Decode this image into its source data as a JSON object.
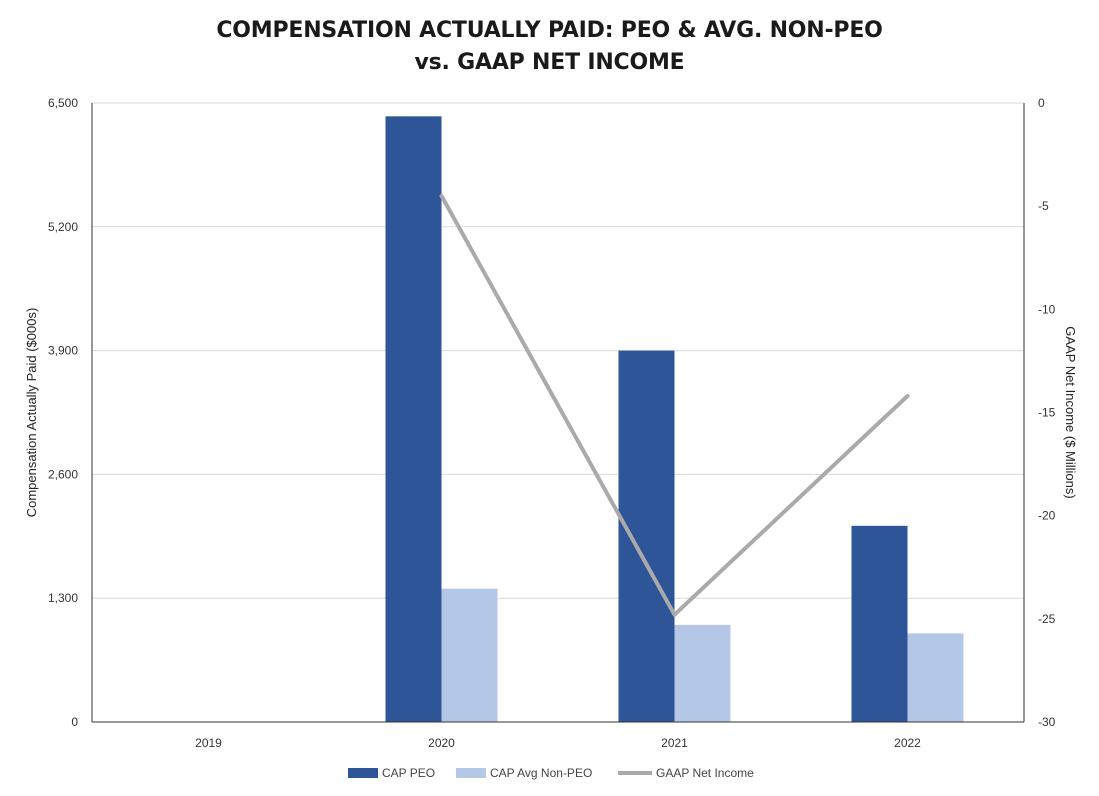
{
  "chart_data": {
    "type": "bar",
    "title_line1": "COMPENSATION ACTUALLY PAID: PEO & AVG. NON-PEO",
    "title_line2": "vs. GAAP NET INCOME",
    "categories": [
      "2019",
      "2020",
      "2021",
      "2022"
    ],
    "series": [
      {
        "name": "CAP PEO",
        "type": "bar",
        "axis": "left",
        "color": "#2e5597",
        "values": [
          null,
          6360,
          3900,
          2060
        ]
      },
      {
        "name": "CAP Avg Non-PEO",
        "type": "bar",
        "axis": "left",
        "color": "#b4c7e7",
        "values": [
          null,
          1400,
          1020,
          930
        ]
      },
      {
        "name": "GAAP Net Income",
        "type": "line",
        "axis": "right",
        "color": "#aaaaaa",
        "values": [
          null,
          -4.5,
          -24.8,
          -14.2
        ]
      }
    ],
    "ylabel": "Compensation Actually Paid ($000s)",
    "y2label": "GAAP Net Income ($ Millions)",
    "ylim": [
      0,
      6500
    ],
    "y2lim": [
      -30,
      0
    ],
    "yticks": [
      "0",
      "1,300",
      "2,600",
      "3,900",
      "5,200",
      "6,500"
    ],
    "y2ticks": [
      "-30",
      "-25",
      "-20",
      "-15",
      "-10",
      "-5",
      "0"
    ],
    "grid": true,
    "legend_position": "bottom"
  }
}
